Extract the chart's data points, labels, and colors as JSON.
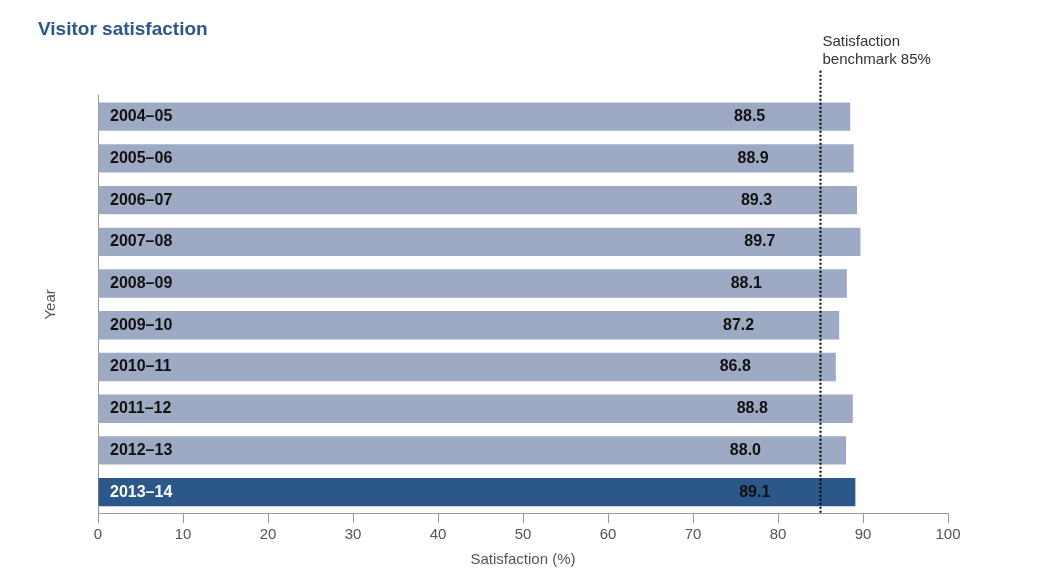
{
  "chart_data": {
    "type": "bar",
    "orientation": "horizontal",
    "title": "Visitor satisfaction",
    "xlabel": "Satisfaction (%)",
    "ylabel": "Year",
    "categories": [
      "2004–05",
      "2005–06",
      "2006–07",
      "2007–08",
      "2008–09",
      "2009–10",
      "2010–11",
      "2011–12",
      "2012–13",
      "2013–14"
    ],
    "values": [
      88.5,
      88.9,
      89.3,
      89.7,
      88.1,
      87.2,
      86.8,
      88.8,
      88.0,
      89.1
    ],
    "colors": [
      "#9eaac4",
      "#9eaac4",
      "#9eaac4",
      "#9eaac4",
      "#9eaac4",
      "#9eaac4",
      "#9eaac4",
      "#9eaac4",
      "#9eaac4",
      "#2b5888"
    ],
    "value_labels": [
      "88.5",
      "88.9",
      "89.3",
      "89.7",
      "88.1",
      "87.2",
      "86.8",
      "88.8",
      "88.0",
      "89.1"
    ],
    "xlim": [
      0,
      100
    ],
    "xticks": [
      0,
      10,
      20,
      30,
      40,
      50,
      60,
      70,
      80,
      90,
      100
    ],
    "ref_lines": [
      {
        "axis": "x",
        "value": 85,
        "label": "Satisfaction benchmark 85%",
        "color": "#000000",
        "line_style": "dotted"
      }
    ],
    "grid": false,
    "legend": false
  }
}
